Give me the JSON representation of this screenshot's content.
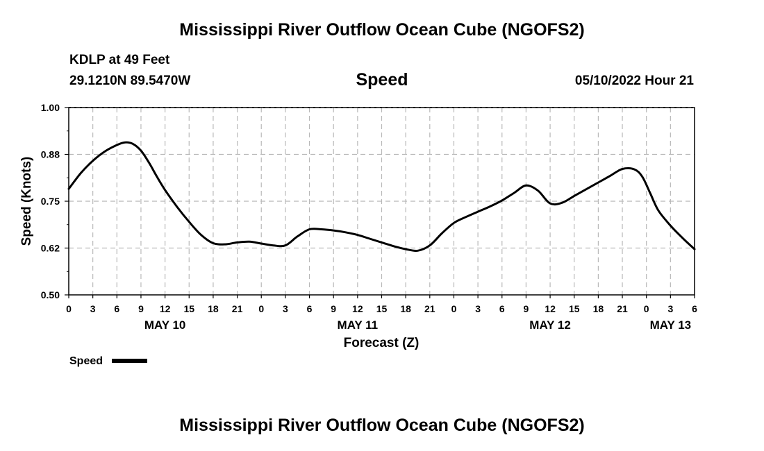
{
  "page": {
    "title_top": "Mississippi River Outflow Ocean Cube (NGOFS2)",
    "title_bottom": "Mississippi River Outflow Ocean Cube (NGOFS2)",
    "station": "KDLP at 49 Feet",
    "coords": "29.1210N  89.5470W",
    "datetime": "05/10/2022 Hour 21"
  },
  "chart_data": {
    "type": "line",
    "title": "Speed",
    "xlabel": "Forecast (Z)",
    "ylabel": "Speed (Knots)",
    "ylim": [
      0.5,
      1.0
    ],
    "xlim": [
      0,
      78
    ],
    "yticks": [
      {
        "value": 0.5,
        "label": "0.50"
      },
      {
        "value": 0.625,
        "label": "0.62"
      },
      {
        "value": 0.75,
        "label": "0.75"
      },
      {
        "value": 0.875,
        "label": "0.88"
      },
      {
        "value": 1.0,
        "label": "1.00"
      }
    ],
    "xticks": [
      {
        "value": 0,
        "label": "0"
      },
      {
        "value": 3,
        "label": "3"
      },
      {
        "value": 6,
        "label": "6"
      },
      {
        "value": 9,
        "label": "9"
      },
      {
        "value": 12,
        "label": "12"
      },
      {
        "value": 15,
        "label": "15"
      },
      {
        "value": 18,
        "label": "18"
      },
      {
        "value": 21,
        "label": "21"
      },
      {
        "value": 24,
        "label": "0"
      },
      {
        "value": 27,
        "label": "3"
      },
      {
        "value": 30,
        "label": "6"
      },
      {
        "value": 33,
        "label": "9"
      },
      {
        "value": 36,
        "label": "12"
      },
      {
        "value": 39,
        "label": "15"
      },
      {
        "value": 42,
        "label": "18"
      },
      {
        "value": 45,
        "label": "21"
      },
      {
        "value": 48,
        "label": "0"
      },
      {
        "value": 51,
        "label": "3"
      },
      {
        "value": 54,
        "label": "6"
      },
      {
        "value": 57,
        "label": "9"
      },
      {
        "value": 60,
        "label": "12"
      },
      {
        "value": 63,
        "label": "15"
      },
      {
        "value": 66,
        "label": "18"
      },
      {
        "value": 69,
        "label": "21"
      },
      {
        "value": 72,
        "label": "0"
      },
      {
        "value": 75,
        "label": "3"
      },
      {
        "value": 78,
        "label": "6"
      }
    ],
    "day_labels": [
      {
        "value": 12,
        "label": "MAY 10"
      },
      {
        "value": 36,
        "label": "MAY 11"
      },
      {
        "value": 60,
        "label": "MAY 12"
      },
      {
        "value": 75,
        "label": "MAY 13"
      }
    ],
    "grid": true,
    "legend": {
      "label": "Speed",
      "position": "bottom-left"
    },
    "series": [
      {
        "name": "Speed",
        "x": [
          0,
          1.5,
          3,
          4.5,
          6,
          7,
          8,
          9,
          10,
          11,
          12,
          13.5,
          15,
          16.5,
          18,
          19.5,
          21,
          22.5,
          24,
          25.5,
          27,
          28.5,
          30,
          31.5,
          33,
          34.5,
          36,
          37.5,
          39,
          40.5,
          42,
          43.5,
          45,
          46.5,
          48,
          49.5,
          51,
          52.5,
          54,
          55.5,
          57,
          58.5,
          60,
          61.5,
          63,
          64.5,
          66,
          67.5,
          69,
          70.5,
          71.5,
          72.5,
          73.5,
          75,
          76.5,
          78
        ],
        "values": [
          0.783,
          0.825,
          0.858,
          0.883,
          0.9,
          0.907,
          0.903,
          0.885,
          0.853,
          0.815,
          0.78,
          0.735,
          0.695,
          0.66,
          0.638,
          0.635,
          0.64,
          0.642,
          0.637,
          0.632,
          0.632,
          0.656,
          0.675,
          0.675,
          0.672,
          0.667,
          0.66,
          0.65,
          0.64,
          0.63,
          0.622,
          0.618,
          0.632,
          0.664,
          0.692,
          0.708,
          0.722,
          0.736,
          0.752,
          0.772,
          0.792,
          0.778,
          0.744,
          0.746,
          0.764,
          0.782,
          0.8,
          0.818,
          0.836,
          0.835,
          0.815,
          0.77,
          0.725,
          0.685,
          0.652,
          0.622
        ]
      }
    ]
  }
}
